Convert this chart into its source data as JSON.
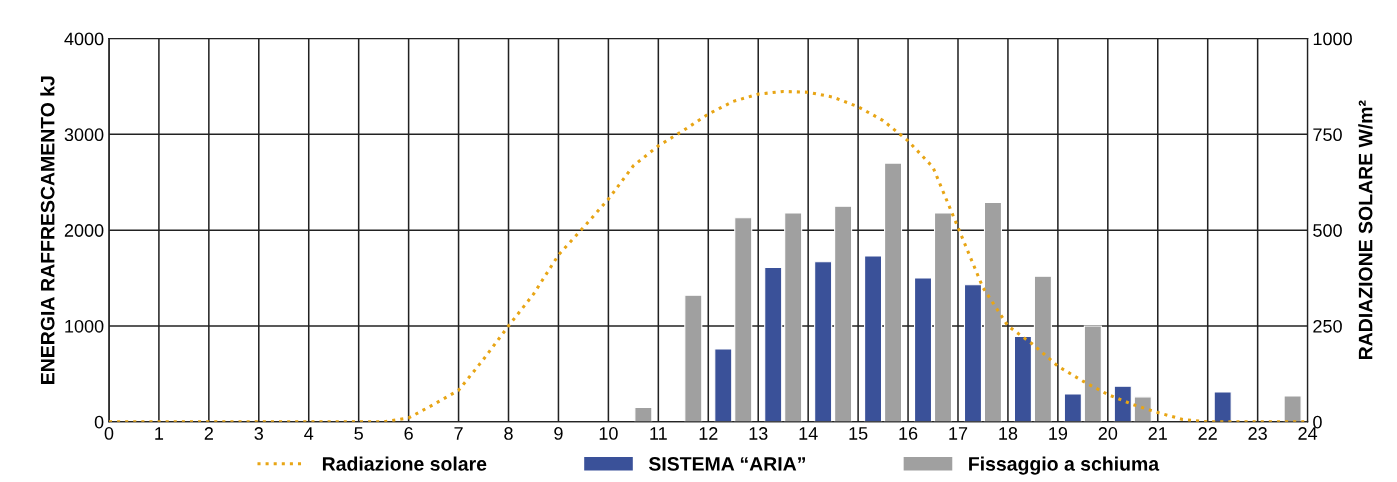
{
  "chart_data": {
    "type": "bar",
    "ylabel": "ENERGIA RAFFRESCAMENTO kJ",
    "y2label": "RADIAZIONE SOLARE W/m²",
    "xlim": [
      0,
      24
    ],
    "xticks": [
      0,
      1,
      2,
      3,
      4,
      5,
      6,
      7,
      8,
      9,
      10,
      11,
      12,
      13,
      14,
      15,
      16,
      17,
      18,
      19,
      20,
      21,
      22,
      23,
      24
    ],
    "ylim": [
      0,
      4000
    ],
    "yticks": [
      0,
      1000,
      2000,
      3000,
      4000
    ],
    "y2lim": [
      0,
      1000
    ],
    "y2ticks": [
      0,
      250,
      500,
      750,
      1000
    ],
    "grid": true,
    "legend": "bottom",
    "series": [
      {
        "name": "Radiazione solare",
        "type": "line",
        "axis": "y2",
        "color": "#e8a515",
        "line_style": "dotted",
        "x": [
          0,
          1,
          2,
          3,
          4,
          5,
          5.5,
          6,
          6.5,
          7,
          7.5,
          8,
          8.5,
          9,
          9.5,
          10,
          10.5,
          11,
          11.5,
          12,
          12.5,
          13,
          13.5,
          14,
          14.5,
          15,
          15.5,
          16,
          16.5,
          17,
          17.5,
          18,
          18.5,
          19,
          19.5,
          20,
          20.5,
          21,
          21.5,
          22,
          23,
          24
        ],
        "values": [
          0,
          0,
          0,
          0,
          0,
          0,
          0,
          10,
          45,
          82,
          163,
          250,
          333,
          435,
          507,
          581,
          668,
          720,
          760,
          803,
          836,
          855,
          862,
          860,
          847,
          822,
          786,
          733,
          664,
          507,
          350,
          250,
          202,
          145,
          106,
          71,
          45,
          24,
          6,
          0,
          0,
          0
        ]
      },
      {
        "name": "SISTEMA “ARIA”",
        "color": "#3a5199",
        "x": [
          12.3,
          13.3,
          14.3,
          15.3,
          16.3,
          17.3,
          18.3,
          19.3,
          20.3,
          22.3
        ],
        "values": [
          760,
          1610,
          1670,
          1730,
          1500,
          1430,
          890,
          290,
          370,
          310
        ]
      },
      {
        "name": "Fissaggio a schiuma",
        "color": "#a0a0a0",
        "x": [
          10.7,
          11.7,
          12.7,
          13.7,
          14.7,
          15.7,
          16.7,
          17.7,
          18.7,
          19.7,
          20.7,
          23.7
        ],
        "values": [
          150,
          1320,
          2130,
          2180,
          2250,
          2700,
          2180,
          2290,
          1520,
          1000,
          260,
          270
        ]
      }
    ]
  }
}
